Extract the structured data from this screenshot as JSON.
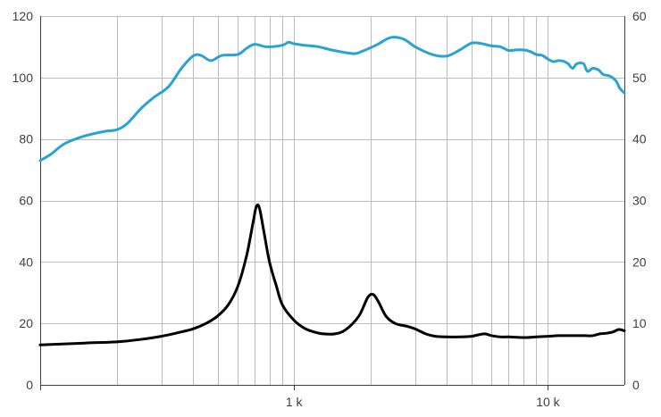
{
  "chart_data": {
    "type": "line",
    "title": "",
    "xlabel": "",
    "ylabel_left": "",
    "ylabel_right": "",
    "x_scale": "log",
    "xlim": [
      100,
      20000
    ],
    "ylim_left": [
      0,
      120
    ],
    "ylim_right": [
      0,
      60
    ],
    "grid": true,
    "legend": "none",
    "x_tick_labels": [
      {
        "value": 1000,
        "label": "1 k"
      },
      {
        "value": 10000,
        "label": "10 k"
      }
    ],
    "y_left_ticks": [
      0,
      20,
      40,
      60,
      80,
      100,
      120
    ],
    "y_right_ticks": [
      0,
      10,
      20,
      30,
      40,
      50,
      60
    ],
    "series": [
      {
        "axis": "left",
        "color": "#29a3d2",
        "points": [
          [
            100,
            73
          ],
          [
            110,
            75
          ],
          [
            125,
            78.5
          ],
          [
            150,
            81
          ],
          [
            180,
            82.5
          ],
          [
            200,
            83
          ],
          [
            220,
            85
          ],
          [
            250,
            90
          ],
          [
            280,
            93.5
          ],
          [
            320,
            97
          ],
          [
            360,
            103
          ],
          [
            400,
            107
          ],
          [
            430,
            107.2
          ],
          [
            470,
            105.5
          ],
          [
            520,
            107.2
          ],
          [
            600,
            107.5
          ],
          [
            650,
            109.5
          ],
          [
            700,
            110.8
          ],
          [
            780,
            110
          ],
          [
            900,
            110.5
          ],
          [
            950,
            111.5
          ],
          [
            1000,
            111
          ],
          [
            1100,
            110.5
          ],
          [
            1250,
            110
          ],
          [
            1400,
            109
          ],
          [
            1700,
            107.8
          ],
          [
            1850,
            108.5
          ],
          [
            2100,
            110.5
          ],
          [
            2400,
            113
          ],
          [
            2700,
            112.5
          ],
          [
            3000,
            110
          ],
          [
            3500,
            107.5
          ],
          [
            4000,
            107
          ],
          [
            4500,
            109
          ],
          [
            5000,
            111.2
          ],
          [
            5500,
            111
          ],
          [
            6000,
            110.3
          ],
          [
            6500,
            110
          ],
          [
            7000,
            108.8
          ],
          [
            7500,
            109
          ],
          [
            8000,
            109
          ],
          [
            8500,
            108.5
          ],
          [
            9000,
            107.5
          ],
          [
            9500,
            107.2
          ],
          [
            10000,
            106
          ],
          [
            10500,
            105.2
          ],
          [
            11000,
            105.5
          ],
          [
            11500,
            105.3
          ],
          [
            12000,
            104.5
          ],
          [
            12500,
            103
          ],
          [
            13000,
            104.5
          ],
          [
            13800,
            104.5
          ],
          [
            14300,
            102
          ],
          [
            15000,
            103
          ],
          [
            15800,
            102.5
          ],
          [
            16500,
            101
          ],
          [
            17500,
            100.5
          ],
          [
            18500,
            99
          ],
          [
            19200,
            96.5
          ],
          [
            20000,
            95
          ]
        ]
      },
      {
        "axis": "right",
        "color": "#000000",
        "points": [
          [
            100,
            6.5
          ],
          [
            150,
            6.8
          ],
          [
            200,
            7
          ],
          [
            250,
            7.4
          ],
          [
            300,
            7.9
          ],
          [
            350,
            8.5
          ],
          [
            400,
            9.1
          ],
          [
            450,
            10
          ],
          [
            500,
            11.2
          ],
          [
            550,
            13
          ],
          [
            600,
            16
          ],
          [
            650,
            21
          ],
          [
            690,
            26.5
          ],
          [
            710,
            29
          ],
          [
            730,
            28.8
          ],
          [
            760,
            25
          ],
          [
            800,
            20
          ],
          [
            850,
            16.2
          ],
          [
            900,
            13
          ],
          [
            1000,
            10.5
          ],
          [
            1100,
            9.2
          ],
          [
            1200,
            8.6
          ],
          [
            1300,
            8.3
          ],
          [
            1450,
            8.3
          ],
          [
            1600,
            9
          ],
          [
            1800,
            11.2
          ],
          [
            1950,
            14.2
          ],
          [
            2050,
            14.7
          ],
          [
            2150,
            13.5
          ],
          [
            2300,
            11.2
          ],
          [
            2500,
            10
          ],
          [
            2800,
            9.5
          ],
          [
            3000,
            9.1
          ],
          [
            3300,
            8.3
          ],
          [
            3600,
            7.9
          ],
          [
            4000,
            7.8
          ],
          [
            4500,
            7.8
          ],
          [
            5000,
            7.9
          ],
          [
            5600,
            8.3
          ],
          [
            6000,
            8
          ],
          [
            6500,
            7.8
          ],
          [
            7000,
            7.8
          ],
          [
            8000,
            7.7
          ],
          [
            9000,
            7.8
          ],
          [
            10000,
            7.9
          ],
          [
            11000,
            8
          ],
          [
            12000,
            8
          ],
          [
            13000,
            8
          ],
          [
            14000,
            8
          ],
          [
            15000,
            8
          ],
          [
            16000,
            8.3
          ],
          [
            17000,
            8.4
          ],
          [
            18000,
            8.6
          ],
          [
            19000,
            9
          ],
          [
            20000,
            8.8
          ]
        ]
      }
    ]
  }
}
